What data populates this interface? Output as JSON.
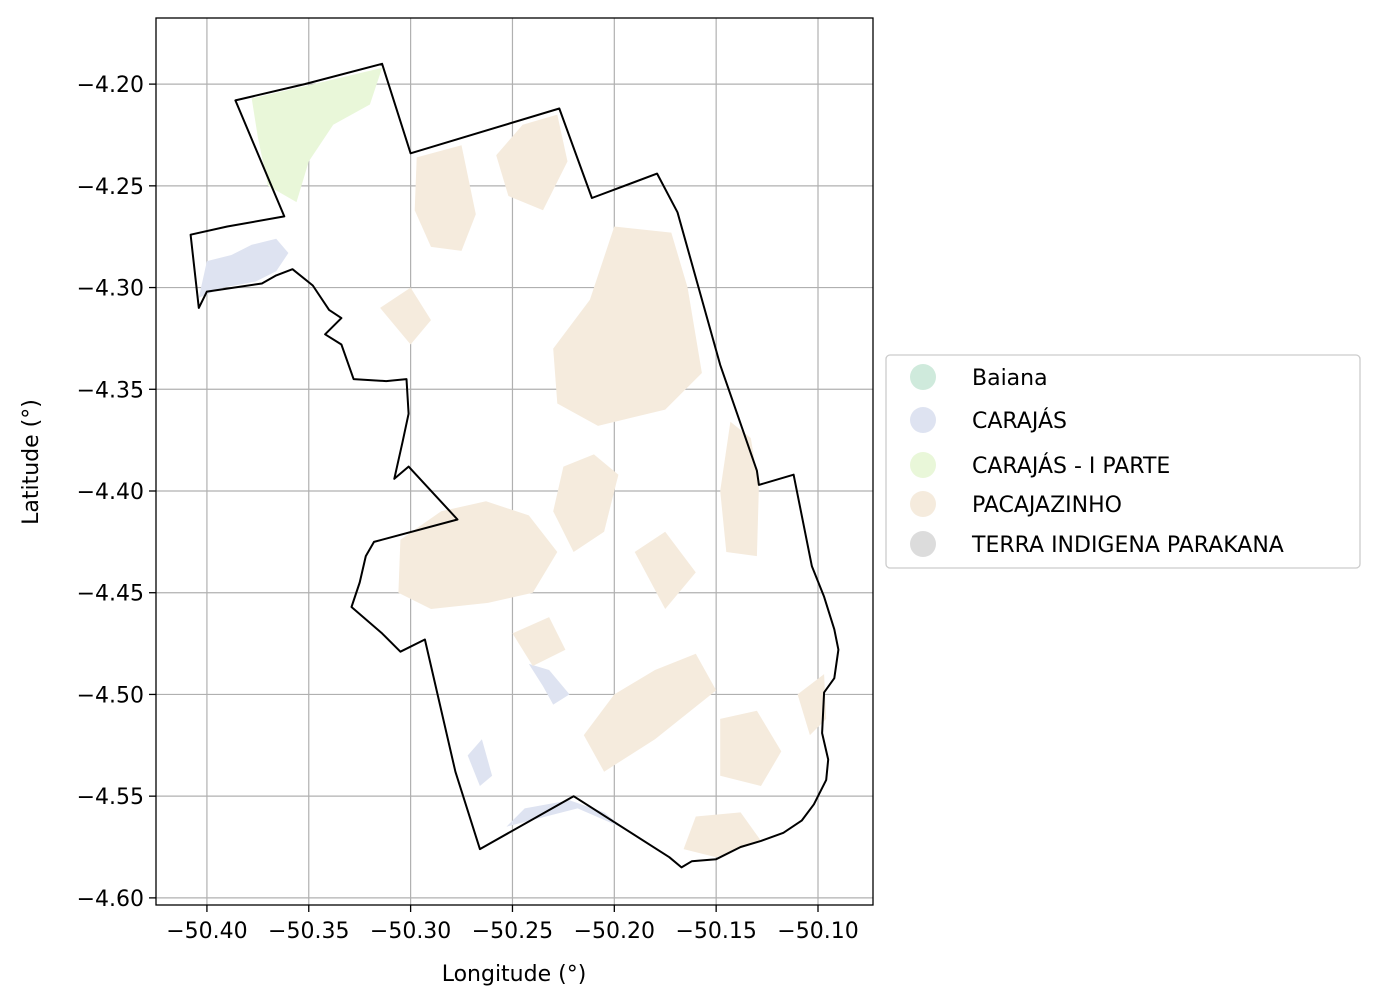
{
  "chart_data": {
    "type": "map",
    "xlabel": "Longitude (°)",
    "ylabel": "Latitude (°)",
    "xlim": [
      -50.425,
      -50.073
    ],
    "ylim": [
      -4.6035,
      -4.1675
    ],
    "x_ticks": [
      -50.4,
      -50.35,
      -50.3,
      -50.25,
      -50.2,
      -50.15,
      -50.1
    ],
    "y_ticks": [
      -4.2,
      -4.25,
      -4.3,
      -4.35,
      -4.4,
      -4.45,
      -4.5,
      -4.55,
      -4.6
    ],
    "x_tick_labels": [
      "−50.40",
      "−50.35",
      "−50.30",
      "−50.25",
      "−50.20",
      "−50.15",
      "−50.10"
    ],
    "y_tick_labels": [
      "−4.20",
      "−4.25",
      "−4.30",
      "−4.35",
      "−4.40",
      "−4.45",
      "−4.50",
      "−4.55",
      "−4.60"
    ],
    "grid": true,
    "legend_position": "right-center",
    "legend": [
      {
        "label": "Baiana",
        "color": "#cfeadc"
      },
      {
        "label": "CARAJÁS",
        "color": "#dee3f1"
      },
      {
        "label": "CARAJÁS - I PARTE",
        "color": "#e9f7d9"
      },
      {
        "label": "PACAJAZINHO",
        "color": "#f5ebdd"
      },
      {
        "label": "TERRA INDIGENA PARAKANA",
        "color": "#dcdcdc"
      }
    ],
    "boundary": [
      [
        -50.386,
        -4.208
      ],
      [
        -50.352,
        -4.2
      ],
      [
        -50.314,
        -4.19
      ],
      [
        -50.3,
        -4.234
      ],
      [
        -50.227,
        -4.212
      ],
      [
        -50.211,
        -4.256
      ],
      [
        -50.179,
        -4.244
      ],
      [
        -50.169,
        -4.263
      ],
      [
        -50.148,
        -4.338
      ],
      [
        -50.13,
        -4.39
      ],
      [
        -50.129,
        -4.397
      ],
      [
        -50.112,
        -4.392
      ],
      [
        -50.103,
        -4.437
      ],
      [
        -50.097,
        -4.452
      ],
      [
        -50.092,
        -4.468
      ],
      [
        -50.09,
        -4.478
      ],
      [
        -50.092,
        -4.492
      ],
      [
        -50.097,
        -4.499
      ],
      [
        -50.098,
        -4.519
      ],
      [
        -50.095,
        -4.532
      ],
      [
        -50.096,
        -4.542
      ],
      [
        -50.102,
        -4.554
      ],
      [
        -50.108,
        -4.562
      ],
      [
        -50.117,
        -4.568
      ],
      [
        -50.128,
        -4.572
      ],
      [
        -50.138,
        -4.575
      ],
      [
        -50.15,
        -4.581
      ],
      [
        -50.162,
        -4.582
      ],
      [
        -50.167,
        -4.585
      ],
      [
        -50.173,
        -4.58
      ],
      [
        -50.22,
        -4.55
      ],
      [
        -50.266,
        -4.576
      ],
      [
        -50.278,
        -4.538
      ],
      [
        -50.293,
        -4.473
      ],
      [
        -50.305,
        -4.479
      ],
      [
        -50.314,
        -4.47
      ],
      [
        -50.329,
        -4.457
      ],
      [
        -50.325,
        -4.445
      ],
      [
        -50.322,
        -4.432
      ],
      [
        -50.318,
        -4.425
      ],
      [
        -50.277,
        -4.414
      ],
      [
        -50.301,
        -4.388
      ],
      [
        -50.308,
        -4.394
      ],
      [
        -50.304,
        -4.376
      ],
      [
        -50.301,
        -4.362
      ],
      [
        -50.302,
        -4.345
      ],
      [
        -50.312,
        -4.346
      ],
      [
        -50.328,
        -4.345
      ],
      [
        -50.334,
        -4.328
      ],
      [
        -50.342,
        -4.323
      ],
      [
        -50.334,
        -4.315
      ],
      [
        -50.34,
        -4.311
      ],
      [
        -50.348,
        -4.299
      ],
      [
        -50.358,
        -4.291
      ],
      [
        -50.366,
        -4.294
      ],
      [
        -50.373,
        -4.298
      ],
      [
        -50.4,
        -4.302
      ],
      [
        -50.404,
        -4.31
      ],
      [
        -50.408,
        -4.274
      ],
      [
        -50.39,
        -4.27
      ],
      [
        -50.362,
        -4.265
      ]
    ],
    "zones": [
      {
        "class": "CARAJÁS - I PARTE",
        "polygon": [
          [
            -50.378,
            -4.207
          ],
          [
            -50.352,
            -4.201
          ],
          [
            -50.314,
            -4.192
          ],
          [
            -50.32,
            -4.21
          ],
          [
            -50.338,
            -4.22
          ],
          [
            -50.35,
            -4.238
          ],
          [
            -50.356,
            -4.258
          ],
          [
            -50.37,
            -4.25
          ],
          [
            -50.375,
            -4.226
          ]
        ]
      },
      {
        "class": "CARAJÁS",
        "polygon": [
          [
            -50.404,
            -4.305
          ],
          [
            -50.4,
            -4.287
          ],
          [
            -50.388,
            -4.284
          ],
          [
            -50.378,
            -4.279
          ],
          [
            -50.366,
            -4.276
          ],
          [
            -50.36,
            -4.283
          ],
          [
            -50.366,
            -4.292
          ],
          [
            -50.376,
            -4.297
          ],
          [
            -50.392,
            -4.3
          ]
        ]
      },
      {
        "class": "CARAJÁS",
        "polygon": [
          [
            -50.235,
            -4.496
          ],
          [
            -50.242,
            -4.485
          ],
          [
            -50.232,
            -4.488
          ],
          [
            -50.222,
            -4.5
          ],
          [
            -50.23,
            -4.505
          ]
        ]
      },
      {
        "class": "CARAJÁS",
        "polygon": [
          [
            -50.253,
            -4.565
          ],
          [
            -50.244,
            -4.556
          ],
          [
            -50.222,
            -4.552
          ],
          [
            -50.205,
            -4.558
          ],
          [
            -50.195,
            -4.566
          ],
          [
            -50.218,
            -4.556
          ]
        ]
      },
      {
        "class": "CARAJÁS",
        "polygon": [
          [
            -50.272,
            -4.53
          ],
          [
            -50.265,
            -4.522
          ],
          [
            -50.26,
            -4.54
          ],
          [
            -50.266,
            -4.545
          ]
        ]
      },
      {
        "class": "PACAJAZINHO",
        "polygon": [
          [
            -50.297,
            -4.236
          ],
          [
            -50.275,
            -4.23
          ],
          [
            -50.268,
            -4.264
          ],
          [
            -50.275,
            -4.282
          ],
          [
            -50.29,
            -4.28
          ],
          [
            -50.298,
            -4.262
          ]
        ]
      },
      {
        "class": "PACAJAZINHO",
        "polygon": [
          [
            -50.245,
            -4.22
          ],
          [
            -50.228,
            -4.215
          ],
          [
            -50.223,
            -4.238
          ],
          [
            -50.235,
            -4.262
          ],
          [
            -50.252,
            -4.255
          ],
          [
            -50.258,
            -4.235
          ]
        ]
      },
      {
        "class": "PACAJAZINHO",
        "polygon": [
          [
            -50.2,
            -4.27
          ],
          [
            -50.172,
            -4.273
          ],
          [
            -50.164,
            -4.3
          ],
          [
            -50.157,
            -4.342
          ],
          [
            -50.175,
            -4.36
          ],
          [
            -50.208,
            -4.368
          ],
          [
            -50.228,
            -4.357
          ],
          [
            -50.23,
            -4.33
          ],
          [
            -50.212,
            -4.306
          ]
        ]
      },
      {
        "class": "PACAJAZINHO",
        "polygon": [
          [
            -50.143,
            -4.366
          ],
          [
            -50.148,
            -4.4
          ],
          [
            -50.145,
            -4.43
          ],
          [
            -50.13,
            -4.432
          ],
          [
            -50.129,
            -4.398
          ],
          [
            -50.133,
            -4.374
          ]
        ]
      },
      {
        "class": "PACAJAZINHO",
        "polygon": [
          [
            -50.305,
            -4.424
          ],
          [
            -50.285,
            -4.41
          ],
          [
            -50.263,
            -4.405
          ],
          [
            -50.242,
            -4.412
          ],
          [
            -50.228,
            -4.43
          ],
          [
            -50.24,
            -4.45
          ],
          [
            -50.262,
            -4.455
          ],
          [
            -50.29,
            -4.458
          ],
          [
            -50.306,
            -4.45
          ]
        ]
      },
      {
        "class": "PACAJAZINHO",
        "polygon": [
          [
            -50.225,
            -4.388
          ],
          [
            -50.21,
            -4.382
          ],
          [
            -50.198,
            -4.392
          ],
          [
            -50.205,
            -4.42
          ],
          [
            -50.22,
            -4.43
          ],
          [
            -50.23,
            -4.41
          ]
        ]
      },
      {
        "class": "PACAJAZINHO",
        "polygon": [
          [
            -50.2,
            -4.5
          ],
          [
            -50.18,
            -4.488
          ],
          [
            -50.16,
            -4.48
          ],
          [
            -50.15,
            -4.498
          ],
          [
            -50.18,
            -4.522
          ],
          [
            -50.205,
            -4.538
          ],
          [
            -50.215,
            -4.52
          ]
        ]
      },
      {
        "class": "PACAJAZINHO",
        "polygon": [
          [
            -50.148,
            -4.512
          ],
          [
            -50.13,
            -4.508
          ],
          [
            -50.118,
            -4.528
          ],
          [
            -50.128,
            -4.545
          ],
          [
            -50.148,
            -4.54
          ]
        ]
      },
      {
        "class": "PACAJAZINHO",
        "polygon": [
          [
            -50.16,
            -4.56
          ],
          [
            -50.138,
            -4.558
          ],
          [
            -50.128,
            -4.572
          ],
          [
            -50.15,
            -4.58
          ],
          [
            -50.166,
            -4.576
          ]
        ]
      },
      {
        "class": "PACAJAZINHO",
        "polygon": [
          [
            -50.11,
            -4.5
          ],
          [
            -50.097,
            -4.49
          ],
          [
            -50.096,
            -4.512
          ],
          [
            -50.104,
            -4.52
          ]
        ]
      },
      {
        "class": "PACAJAZINHO",
        "polygon": [
          [
            -50.25,
            -4.47
          ],
          [
            -50.232,
            -4.462
          ],
          [
            -50.224,
            -4.478
          ],
          [
            -50.24,
            -4.486
          ]
        ]
      },
      {
        "class": "PACAJAZINHO",
        "polygon": [
          [
            -50.315,
            -4.31
          ],
          [
            -50.3,
            -4.3
          ],
          [
            -50.29,
            -4.316
          ],
          [
            -50.3,
            -4.328
          ]
        ]
      },
      {
        "class": "PACAJAZINHO",
        "polygon": [
          [
            -50.19,
            -4.43
          ],
          [
            -50.175,
            -4.42
          ],
          [
            -50.16,
            -4.44
          ],
          [
            -50.175,
            -4.458
          ]
        ]
      }
    ]
  }
}
